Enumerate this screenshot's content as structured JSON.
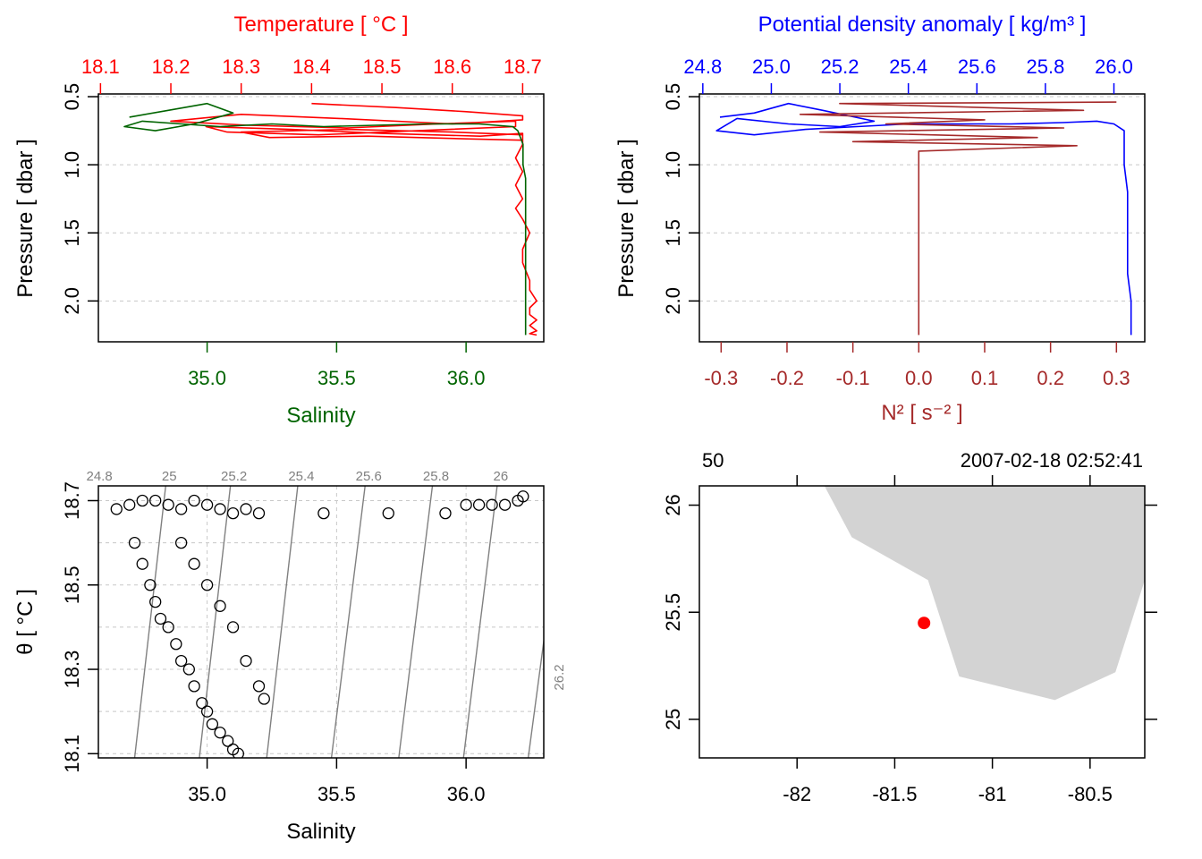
{
  "chart_data": [
    {
      "type": "line",
      "panel": "salinity-temperature-profile",
      "top_axis_title": "Temperature [ °C ]",
      "bottom_axis_title": "Salinity",
      "ylabel": "Pressure [ dbar ]",
      "temperature_axis": {
        "ticks": [
          "18.1",
          "18.2",
          "18.3",
          "18.4",
          "18.5",
          "18.6",
          "18.7"
        ],
        "range": [
          18.097,
          18.73
        ]
      },
      "salinity_axis": {
        "ticks": [
          "35.0",
          "35.5",
          "36.0"
        ],
        "range": [
          34.58,
          36.3
        ]
      },
      "pressure_axis": {
        "ticks": [
          "0.5",
          "1.0",
          "1.5",
          "2.0"
        ],
        "range": [
          0.48,
          2.3
        ],
        "reversed": true
      },
      "grid": true,
      "series": [
        {
          "color": "#ff0000",
          "quantity": "temperature",
          "x": [
            18.4,
            18.52,
            18.62,
            18.7,
            18.7,
            18.6,
            18.44,
            18.3,
            18.2,
            18.31,
            18.45,
            18.58,
            18.69,
            18.69,
            18.55,
            18.41,
            18.28,
            18.25,
            18.37,
            18.5,
            18.64,
            18.7,
            18.7,
            18.62,
            18.48,
            18.34,
            18.3,
            18.45,
            18.6,
            18.7,
            18.7,
            18.69,
            18.7,
            18.69,
            18.7,
            18.69,
            18.7,
            18.71,
            18.7,
            18.7,
            18.71,
            18.71,
            18.72,
            18.71,
            18.71,
            18.72,
            18.71,
            18.72,
            18.71,
            18.72
          ],
          "p": [
            0.55,
            0.58,
            0.61,
            0.64,
            0.67,
            0.7,
            0.66,
            0.63,
            0.68,
            0.71,
            0.73,
            0.7,
            0.68,
            0.72,
            0.75,
            0.78,
            0.76,
            0.72,
            0.74,
            0.77,
            0.79,
            0.77,
            0.82,
            0.81,
            0.79,
            0.8,
            0.76,
            0.74,
            0.76,
            0.78,
            0.85,
            0.95,
            1.05,
            1.15,
            1.25,
            1.32,
            1.4,
            1.5,
            1.62,
            1.72,
            1.85,
            1.92,
            2.0,
            2.05,
            2.1,
            2.14,
            2.18,
            2.22,
            2.24,
            2.25
          ]
        },
        {
          "color": "#006400",
          "quantity": "salinity",
          "x": [
            34.7,
            34.85,
            35.0,
            35.1,
            34.95,
            34.8,
            34.68,
            34.75,
            34.9,
            35.05,
            35.25,
            35.45,
            35.65,
            35.85,
            36.05,
            36.18,
            36.2,
            36.22,
            36.22,
            36.23,
            36.23,
            36.23,
            36.23,
            36.23,
            36.23,
            36.23,
            36.23,
            36.23
          ],
          "p": [
            0.65,
            0.6,
            0.55,
            0.62,
            0.7,
            0.75,
            0.72,
            0.68,
            0.7,
            0.72,
            0.7,
            0.72,
            0.71,
            0.7,
            0.7,
            0.72,
            0.75,
            0.85,
            1.0,
            1.1,
            1.2,
            1.4,
            1.6,
            1.8,
            2.0,
            2.1,
            2.2,
            2.25
          ]
        }
      ]
    },
    {
      "type": "line",
      "panel": "density-n2-profile",
      "top_axis_title": "Potential density anomaly [ kg/m³ ]",
      "bottom_axis_title": "N² [ s⁻² ]",
      "ylabel": "Pressure [ dbar ]",
      "density_axis": {
        "ticks": [
          "24.8",
          "25.0",
          "25.2",
          "25.4",
          "25.6",
          "25.8",
          "26.0"
        ],
        "range": [
          24.79,
          26.09
        ]
      },
      "n2_axis": {
        "ticks": [
          "-0.3",
          "-0.2",
          "-0.1",
          "0.0",
          "0.1",
          "0.2",
          "0.3"
        ],
        "range": [
          -0.333,
          0.343
        ]
      },
      "pressure_axis": {
        "ticks": [
          "0.5",
          "1.0",
          "1.5",
          "2.0"
        ],
        "range": [
          0.48,
          2.3
        ],
        "reversed": true
      },
      "grid": true,
      "series": [
        {
          "color": "#0000ff",
          "quantity": "density",
          "x": [
            24.85,
            24.95,
            25.05,
            25.15,
            25.3,
            25.2,
            25.05,
            24.9,
            24.84,
            24.95,
            25.1,
            25.25,
            25.4,
            25.55,
            25.7,
            25.85,
            25.95,
            26.0,
            26.03,
            26.03,
            26.03,
            26.04,
            26.04,
            26.04,
            26.04,
            26.05,
            26.05,
            26.05
          ],
          "p": [
            0.65,
            0.62,
            0.55,
            0.6,
            0.68,
            0.72,
            0.7,
            0.66,
            0.75,
            0.78,
            0.74,
            0.72,
            0.7,
            0.7,
            0.7,
            0.69,
            0.68,
            0.7,
            0.75,
            0.85,
            1.0,
            1.2,
            1.4,
            1.6,
            1.8,
            2.0,
            2.15,
            2.25
          ]
        },
        {
          "color": "#a52a2a",
          "quantity": "N2",
          "x": [
            0.3,
            -0.12,
            0.25,
            -0.18,
            0.1,
            -0.05,
            0.22,
            -0.15,
            0.18,
            -0.1,
            0.24,
            0.0,
            0.0,
            0.0,
            0.0,
            0.0,
            0.0,
            0.0
          ],
          "p": [
            0.54,
            0.55,
            0.6,
            0.63,
            0.67,
            0.7,
            0.73,
            0.76,
            0.8,
            0.83,
            0.86,
            0.9,
            1.0,
            1.2,
            1.5,
            1.8,
            2.1,
            2.25
          ]
        }
      ]
    },
    {
      "type": "scatter",
      "panel": "ts-diagram",
      "xlabel": "Salinity",
      "ylabel": "θ [ °C ]",
      "x_axis": {
        "ticks": [
          "35.0",
          "35.5",
          "36.0"
        ],
        "range": [
          34.58,
          36.3
        ]
      },
      "y_axis": {
        "ticks": [
          "18.1",
          "18.3",
          "18.5",
          "18.7"
        ],
        "range": [
          18.09,
          18.735
        ]
      },
      "isopycnals": [
        "24.8",
        "25",
        "25.2",
        "25.4",
        "25.6",
        "25.8",
        "26",
        "26.2"
      ],
      "grid": true,
      "points": {
        "s": [
          34.65,
          34.7,
          34.75,
          34.8,
          34.85,
          34.9,
          34.95,
          35.0,
          35.05,
          35.1,
          35.15,
          35.2,
          35.45,
          35.7,
          35.92,
          36.0,
          36.05,
          36.1,
          36.15,
          36.2,
          36.22,
          34.72,
          34.75,
          34.78,
          34.8,
          34.82,
          34.85,
          34.88,
          34.9,
          34.93,
          34.95,
          34.98,
          35.0,
          35.02,
          35.05,
          35.08,
          35.1,
          35.12,
          34.9,
          34.95,
          35.0,
          35.05,
          35.1,
          35.15,
          35.2,
          35.22
        ],
        "t": [
          18.68,
          18.69,
          18.7,
          18.7,
          18.69,
          18.68,
          18.7,
          18.69,
          18.68,
          18.67,
          18.68,
          18.67,
          18.67,
          18.67,
          18.67,
          18.69,
          18.69,
          18.69,
          18.69,
          18.7,
          18.71,
          18.6,
          18.55,
          18.5,
          18.46,
          18.42,
          18.4,
          18.36,
          18.32,
          18.3,
          18.26,
          18.22,
          18.2,
          18.17,
          18.15,
          18.13,
          18.11,
          18.1,
          18.6,
          18.55,
          18.5,
          18.45,
          18.4,
          18.32,
          18.26,
          18.23
        ]
      }
    },
    {
      "type": "map",
      "panel": "station-map",
      "station": "50",
      "timestamp": "2007-02-18 02:52:41",
      "lon_axis": {
        "ticks": [
          "-82",
          "-81.5",
          "-81",
          "-80.5"
        ],
        "range": [
          -82.5,
          -80.22
        ]
      },
      "lat_axis": {
        "ticks": [
          "25",
          "25.5",
          "26"
        ],
        "range": [
          24.82,
          26.09
        ]
      },
      "land_color": "#d3d3d3",
      "land_outline": [
        [
          -81.86,
          26.09
        ],
        [
          -81.72,
          25.85
        ],
        [
          -81.33,
          25.65
        ],
        [
          -81.17,
          25.2
        ],
        [
          -80.68,
          25.09
        ],
        [
          -80.37,
          25.22
        ],
        [
          -80.22,
          25.65
        ],
        [
          -80.22,
          26.09
        ]
      ],
      "station_point": {
        "lon": -81.35,
        "lat": 25.45,
        "color": "#ff0000"
      }
    }
  ]
}
